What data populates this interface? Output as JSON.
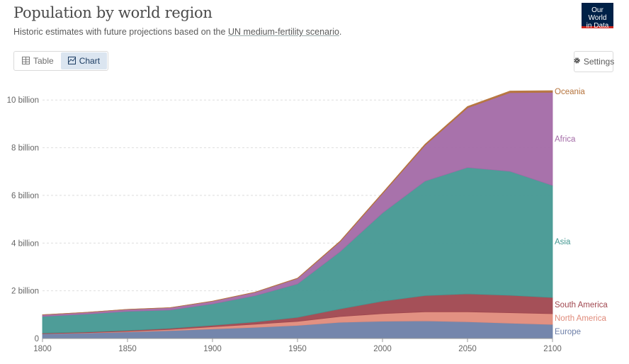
{
  "header": {
    "title": "Population by world region",
    "subtitle_prefix": "Historic estimates with future projections based on the ",
    "subtitle_link": "UN medium-fertility scenario",
    "subtitle_suffix": "."
  },
  "logo": {
    "line1": "Our World",
    "line2": "in Data"
  },
  "tabs": [
    {
      "label": "Table",
      "icon": "table-icon",
      "active": false
    },
    {
      "label": "Chart",
      "icon": "chart-icon",
      "active": true
    }
  ],
  "settings": {
    "label": "Settings",
    "icon": "gear-icon"
  },
  "chart_data": {
    "type": "area",
    "stacked": true,
    "title": "Population by world region",
    "x": [
      1800,
      1825,
      1850,
      1875,
      1900,
      1925,
      1950,
      1975,
      2000,
      2025,
      2050,
      2075,
      2100
    ],
    "xlim": [
      1800,
      2100
    ],
    "ylim": [
      0,
      10600000000
    ],
    "xticks": [
      1800,
      1850,
      1900,
      1950,
      2000,
      2050,
      2100
    ],
    "yticks": [
      {
        "value": 0,
        "label": "0"
      },
      {
        "value": 2000000000,
        "label": "2 billion"
      },
      {
        "value": 4000000000,
        "label": "4 billion"
      },
      {
        "value": 6000000000,
        "label": "6 billion"
      },
      {
        "value": 8000000000,
        "label": "8 billion"
      },
      {
        "value": 10000000000,
        "label": "10 billion"
      }
    ],
    "grid": true,
    "legend": "right",
    "series": [
      {
        "name": "Europe",
        "color": "#6d7fa8",
        "values": [
          195000000,
          230000000,
          275000000,
          330000000,
          400000000,
          470000000,
          550000000,
          680000000,
          725000000,
          740000000,
          700000000,
          640000000,
          590000000
        ]
      },
      {
        "name": "North America",
        "color": "#e08b7b",
        "values": [
          7000000,
          12000000,
          26000000,
          50000000,
          90000000,
          130000000,
          170000000,
          240000000,
          320000000,
          380000000,
          420000000,
          440000000,
          450000000
        ]
      },
      {
        "name": "South America",
        "color": "#a0474f",
        "values": [
          24000000,
          30000000,
          38000000,
          47000000,
          63000000,
          95000000,
          168000000,
          320000000,
          520000000,
          680000000,
          750000000,
          730000000,
          680000000
        ]
      },
      {
        "name": "Asia",
        "color": "#449892",
        "values": [
          700000000,
          750000000,
          800000000,
          770000000,
          900000000,
          1100000000,
          1400000000,
          2400000000,
          3700000000,
          4800000000,
          5300000000,
          5200000000,
          4700000000
        ]
      },
      {
        "name": "Africa",
        "color": "#a36aa6",
        "values": [
          70000000,
          72000000,
          80000000,
          95000000,
          110000000,
          140000000,
          230000000,
          420000000,
          810000000,
          1500000000,
          2500000000,
          3300000000,
          3900000000
        ]
      },
      {
        "name": "Oceania",
        "color": "#b5733c",
        "values": [
          2000000,
          2000000,
          3000000,
          4000000,
          6000000,
          9000000,
          12000000,
          21000000,
          31000000,
          45000000,
          57000000,
          67000000,
          73000000
        ]
      }
    ]
  }
}
